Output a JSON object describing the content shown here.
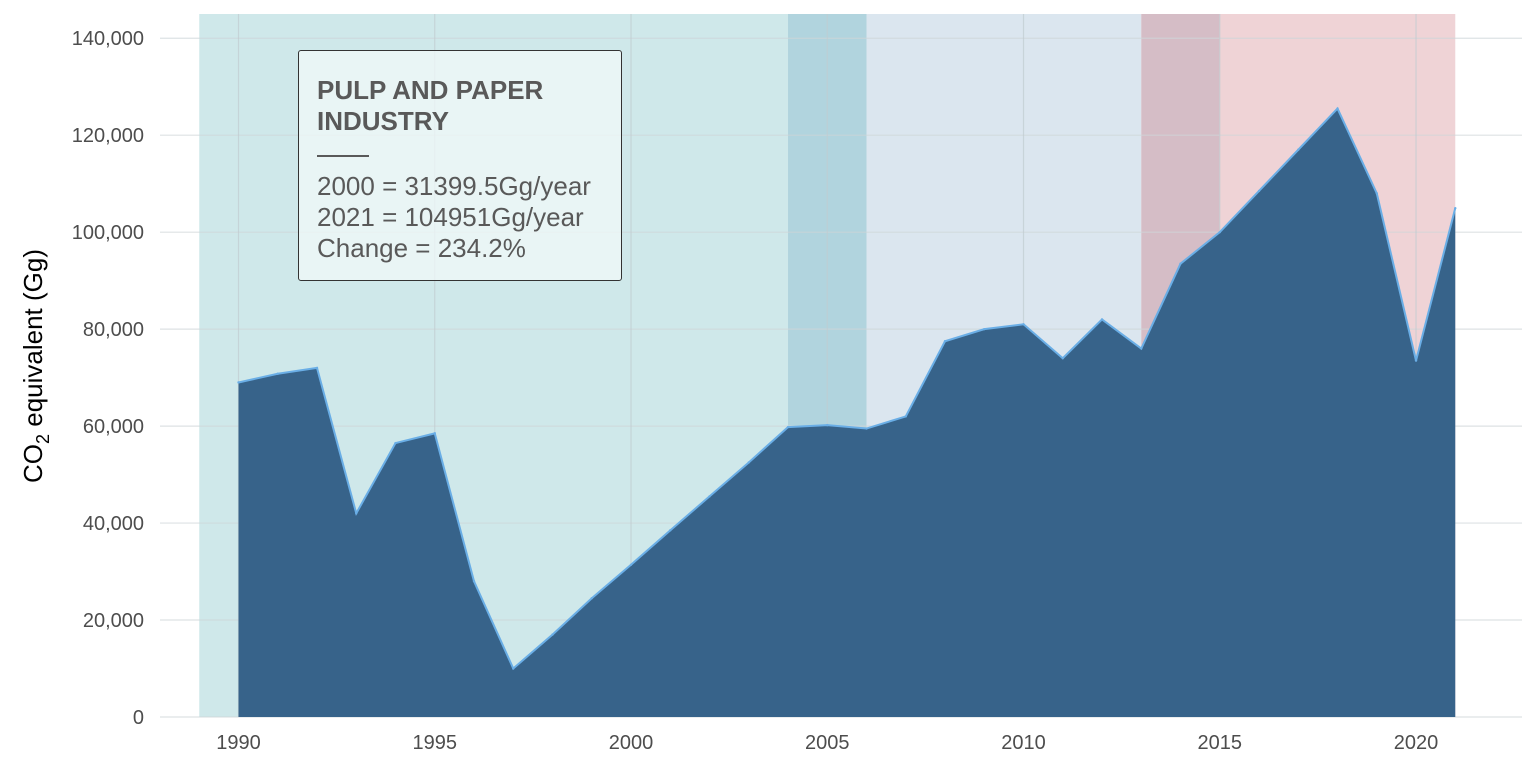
{
  "chart_data": {
    "type": "area",
    "title": "",
    "xlabel": "",
    "ylabel": "CO",
    "ylabel_sub": "2",
    "ylabel_rest": " equivalent (Gg)",
    "xlim": [
      1988,
      2022.7
    ],
    "ylim": [
      0,
      145000
    ],
    "x_ticks": [
      1990,
      1995,
      2000,
      2005,
      2010,
      2015,
      2020
    ],
    "y_ticks": [
      0,
      20000,
      40000,
      60000,
      80000,
      100000,
      120000,
      140000
    ],
    "y_tick_labels": [
      "0",
      "20,000",
      "40,000",
      "60,000",
      "80,000",
      "100,000",
      "120,000",
      "140,000"
    ],
    "grid": true,
    "fill_color": "#37638a",
    "line_color": "#6aaee6",
    "x": [
      1990,
      1991,
      1992,
      1993,
      1994,
      1995,
      1996,
      1997,
      1998,
      1999,
      2000,
      2001,
      2002,
      2003,
      2004,
      2005,
      2006,
      2007,
      2008,
      2009,
      2010,
      2011,
      2012,
      2013,
      2014,
      2015,
      2016,
      2017,
      2018,
      2019,
      2020,
      2021
    ],
    "values": [
      69000,
      70800,
      72000,
      42000,
      56500,
      58500,
      28000,
      10000,
      17000,
      24500,
      31400,
      38500,
      45500,
      52500,
      59800,
      60200,
      59500,
      62000,
      77500,
      80000,
      81000,
      74000,
      82000,
      76000,
      93500,
      100000,
      108500,
      117000,
      125500,
      108000,
      73500,
      104951
    ],
    "periods": [
      {
        "start": 1989,
        "end": 2004,
        "color": "#cfe8ea"
      },
      {
        "start": 2004,
        "end": 2006,
        "color": "#b1d4de"
      },
      {
        "start": 2006,
        "end": 2013,
        "color": "#dbe6ef"
      },
      {
        "start": 2013,
        "end": 2015,
        "color": "#d5bdc6"
      },
      {
        "start": 2015,
        "end": 2021,
        "color": "#efd3d6"
      }
    ]
  },
  "annotation": {
    "title_line1": "PULP AND PAPER",
    "title_line2": "INDUSTRY",
    "line1": "2000 = 31399.5Gg/year",
    "line2": "2021 = 104951Gg/year",
    "line3": "Change = 234.2%"
  }
}
